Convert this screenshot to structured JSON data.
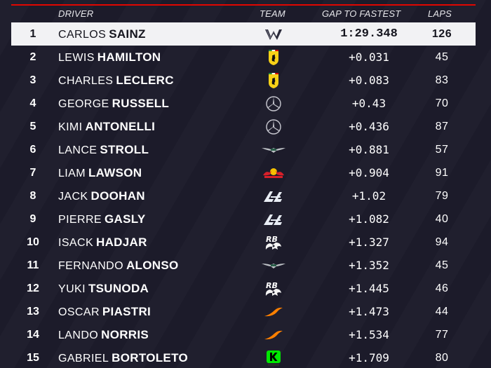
{
  "header": {
    "driver": "DRIVER",
    "team": "TEAM",
    "gap": "GAP TO FASTEST",
    "laps": "LAPS"
  },
  "rows": [
    {
      "pos": "1",
      "first": "CARLOS",
      "last": "SAINZ",
      "team_icon": "williams-logo-icon",
      "gap": "1:29.348",
      "laps": "126"
    },
    {
      "pos": "2",
      "first": "LEWIS",
      "last": "HAMILTON",
      "team_icon": "ferrari-logo-icon",
      "gap": "+0.031",
      "laps": "45"
    },
    {
      "pos": "3",
      "first": "CHARLES",
      "last": "LECLERC",
      "team_icon": "ferrari-logo-icon",
      "gap": "+0.083",
      "laps": "83"
    },
    {
      "pos": "4",
      "first": "GEORGE",
      "last": "RUSSELL",
      "team_icon": "mercedes-logo-icon",
      "gap": "+0.43",
      "laps": "70"
    },
    {
      "pos": "5",
      "first": "KIMI",
      "last": "ANTONELLI",
      "team_icon": "mercedes-logo-icon",
      "gap": "+0.436",
      "laps": "87"
    },
    {
      "pos": "6",
      "first": "LANCE",
      "last": "STROLL",
      "team_icon": "aston-martin-logo-icon",
      "gap": "+0.881",
      "laps": "57"
    },
    {
      "pos": "7",
      "first": "LIAM",
      "last": "LAWSON",
      "team_icon": "red-bull-logo-icon",
      "gap": "+0.904",
      "laps": "91"
    },
    {
      "pos": "8",
      "first": "JACK",
      "last": "DOOHAN",
      "team_icon": "alpine-logo-icon",
      "gap": "+1.02",
      "laps": "79"
    },
    {
      "pos": "9",
      "first": "PIERRE",
      "last": "GASLY",
      "team_icon": "alpine-logo-icon",
      "gap": "+1.082",
      "laps": "40"
    },
    {
      "pos": "10",
      "first": "ISACK",
      "last": "HADJAR",
      "team_icon": "racing-bulls-logo-icon",
      "gap": "+1.327",
      "laps": "94"
    },
    {
      "pos": "11",
      "first": "FERNANDO",
      "last": "ALONSO",
      "team_icon": "aston-martin-logo-icon",
      "gap": "+1.352",
      "laps": "45"
    },
    {
      "pos": "12",
      "first": "YUKI",
      "last": "TSUNODA",
      "team_icon": "racing-bulls-logo-icon",
      "gap": "+1.445",
      "laps": "46"
    },
    {
      "pos": "13",
      "first": "OSCAR",
      "last": "PIASTRI",
      "team_icon": "mclaren-logo-icon",
      "gap": "+1.473",
      "laps": "44"
    },
    {
      "pos": "14",
      "first": "LANDO",
      "last": "NORRIS",
      "team_icon": "mclaren-logo-icon",
      "gap": "+1.534",
      "laps": "77"
    },
    {
      "pos": "15",
      "first": "GABRIEL",
      "last": "BORTOLETO",
      "team_icon": "sauber-logo-icon",
      "gap": "+1.709",
      "laps": "80"
    }
  ],
  "colors": {
    "background": "#1c1b2a",
    "leader_row": "#f2f2f4",
    "accent": "#e10600",
    "ferrari": "#f7d117",
    "mclaren": "#ff8000",
    "sauber": "#00e701"
  }
}
